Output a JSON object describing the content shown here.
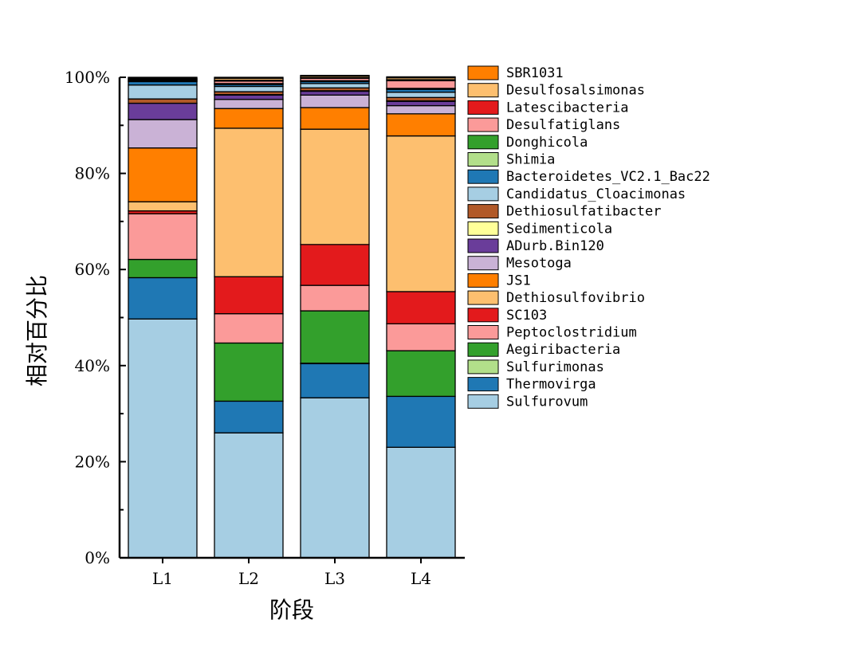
{
  "chart_data": {
    "type": "bar",
    "stacked": true,
    "title": "",
    "xlabel": "阶段",
    "ylabel": "相对百分比",
    "categories": [
      "L1",
      "L2",
      "L3",
      "L4"
    ],
    "ylim": [
      0,
      100
    ],
    "yticks": [
      0,
      20,
      40,
      60,
      80,
      100
    ],
    "ytick_labels": [
      "0%",
      "20%",
      "40%",
      "60%",
      "80%",
      "100%"
    ],
    "legend_position": "right",
    "series": [
      {
        "name": "Sulfurovum",
        "color": "#a6cee3",
        "values": [
          49.7,
          26.0,
          33.3,
          23.0
        ]
      },
      {
        "name": "Thermovirga",
        "color": "#1f78b4",
        "values": [
          8.6,
          6.6,
          7.1,
          10.6
        ]
      },
      {
        "name": "Sulfurimonas",
        "color": "#b2df8a",
        "values": [
          0.0,
          0.0,
          0.1,
          0.0
        ]
      },
      {
        "name": "Aegiribacteria",
        "color": "#33a02c",
        "values": [
          3.8,
          12.1,
          10.9,
          9.5
        ]
      },
      {
        "name": "Peptoclostridium",
        "color": "#fb9a99",
        "values": [
          9.5,
          6.1,
          5.3,
          5.6
        ]
      },
      {
        "name": "SC103",
        "color": "#e31a1c",
        "values": [
          0.6,
          7.7,
          8.5,
          6.7
        ]
      },
      {
        "name": "Dethiosulfovibrio",
        "color": "#fdbf6f",
        "values": [
          1.9,
          30.9,
          24.0,
          32.4
        ]
      },
      {
        "name": "JS1",
        "color": "#ff7f00",
        "values": [
          11.2,
          4.1,
          4.5,
          4.6
        ]
      },
      {
        "name": "Mesotoga",
        "color": "#cab2d6",
        "values": [
          5.9,
          1.9,
          2.6,
          1.7
        ]
      },
      {
        "name": "ADurb.Bin120",
        "color": "#6a3d9a",
        "values": [
          3.4,
          0.9,
          0.8,
          0.9
        ]
      },
      {
        "name": "Sedimenticola",
        "color": "#ffff99",
        "values": [
          0.0,
          0.1,
          0.1,
          0.1
        ]
      },
      {
        "name": "Dethiosulfatibacter",
        "color": "#b15928",
        "values": [
          0.9,
          0.6,
          0.6,
          0.7
        ]
      },
      {
        "name": "Candidatus_Cloacimonas",
        "color": "#a6cee3",
        "values": [
          2.9,
          1.1,
          0.9,
          1.1
        ]
      },
      {
        "name": "Bacteroidetes_VC2.1_Bac22",
        "color": "#1f78b4",
        "values": [
          0.7,
          0.4,
          0.4,
          0.6
        ]
      },
      {
        "name": "Shimia",
        "color": "#b2df8a",
        "values": [
          0.1,
          0.1,
          0.1,
          0.1
        ]
      },
      {
        "name": "Donghicola",
        "color": "#33a02c",
        "values": [
          0.1,
          0.1,
          0.1,
          0.1
        ]
      },
      {
        "name": "Desulfatiglans",
        "color": "#fb9a99",
        "values": [
          0.2,
          0.5,
          0.5,
          1.6
        ]
      },
      {
        "name": "Latescibacteria",
        "color": "#e31a1c",
        "values": [
          0.1,
          0.2,
          0.1,
          0.2
        ]
      },
      {
        "name": "Desulfosalsimonas",
        "color": "#fdbf6f",
        "values": [
          0.2,
          0.4,
          0.3,
          0.4
        ]
      },
      {
        "name": "SBR1031",
        "color": "#ff7f00",
        "values": [
          0.2,
          0.2,
          0.2,
          0.2
        ]
      }
    ]
  }
}
